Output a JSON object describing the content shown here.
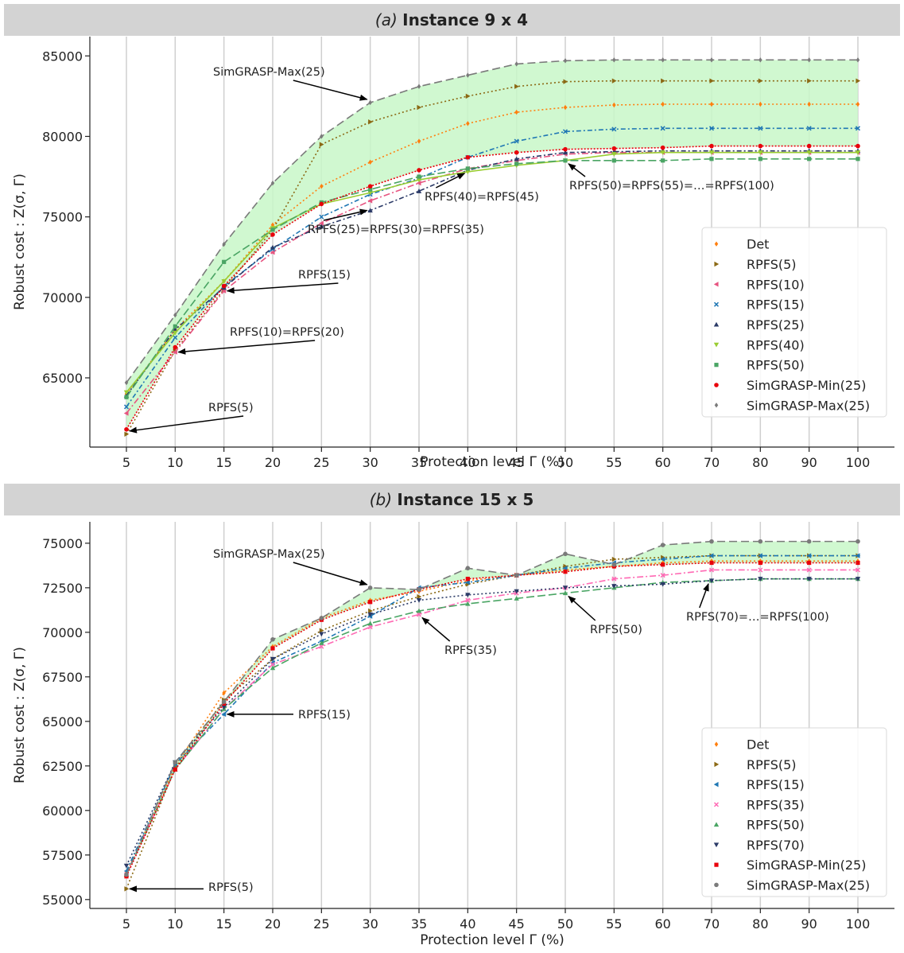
{
  "chart_data": [
    {
      "type": "line",
      "panel_tag": "(a)",
      "title": "Instance 9 x 4",
      "xlabel": "Protection level Γ (%)",
      "ylabel": "Robust cost : Z(σ, Γ)",
      "x_categories": [
        "5",
        "10",
        "15",
        "20",
        "25",
        "30",
        "35",
        "40",
        "45",
        "50",
        "55",
        "60",
        "70",
        "80",
        "90",
        "100"
      ],
      "yticks": [
        65000,
        70000,
        75000,
        80000,
        85000
      ],
      "ylim": [
        60700,
        86200
      ],
      "grid": "vertical",
      "legend_position": "lower-right",
      "band": {
        "lower": "SimGRASP-Min(25)",
        "upper": "SimGRASP-Max(25)",
        "color": "#c8f7c8"
      },
      "series": [
        {
          "name": "Det",
          "color": "#ff7f0e",
          "marker": "diamond",
          "dash": "2,3",
          "values": [
            64000,
            68000,
            71000,
            74500,
            76900,
            78400,
            79700,
            80800,
            81500,
            81800,
            81950,
            82000,
            82000,
            82000,
            82000,
            82000
          ]
        },
        {
          "name": "RPFS(5)",
          "color": "#8b6914",
          "marker": "tri-right",
          "dash": "2,3",
          "values": [
            61500,
            66700,
            70500,
            74200,
            79500,
            80900,
            81800,
            82500,
            83100,
            83400,
            83450,
            83450,
            83450,
            83450,
            83450,
            83450
          ]
        },
        {
          "name": "RPFS(10)",
          "color": "#e75480",
          "marker": "tri-left",
          "dash": "8,3,2,3",
          "values": [
            62800,
            66600,
            70400,
            72800,
            74600,
            76000,
            77100,
            78000,
            78500,
            78900,
            79000,
            79000,
            79000,
            79000,
            79000,
            79000
          ]
        },
        {
          "name": "RPFS(15)",
          "color": "#1f77b4",
          "marker": "x",
          "dash": "6,3,2,3",
          "values": [
            63200,
            67500,
            70700,
            73000,
            75000,
            76400,
            77400,
            78700,
            79700,
            80300,
            80450,
            80500,
            80500,
            80500,
            80500,
            80500
          ]
        },
        {
          "name": "RPFS(25)",
          "color": "#2b3a67",
          "marker": "tri-up",
          "dash": "6,3,2,3",
          "values": [
            63900,
            68000,
            70600,
            73100,
            74400,
            75400,
            76600,
            77900,
            78600,
            79000,
            79050,
            79100,
            79100,
            79100,
            79100,
            79100
          ]
        },
        {
          "name": "RPFS(40)",
          "color": "#9acd32",
          "marker": "tri-down",
          "dash": "0",
          "values": [
            64100,
            67800,
            71000,
            74300,
            75800,
            76500,
            77300,
            77800,
            78200,
            78500,
            78900,
            79000,
            79000,
            79000,
            79000,
            79000
          ]
        },
        {
          "name": "RPFS(50)",
          "color": "#4aa564",
          "marker": "square",
          "dash": "10,4",
          "values": [
            63800,
            68200,
            72200,
            74200,
            75900,
            76700,
            77500,
            78000,
            78300,
            78500,
            78500,
            78500,
            78600,
            78600,
            78600,
            78600
          ]
        },
        {
          "name": "SimGRASP-Min(25)",
          "color": "#e8000b",
          "marker": "circle",
          "dash": "2,2",
          "values": [
            61800,
            66900,
            70700,
            73900,
            75800,
            76900,
            77900,
            78700,
            79000,
            79200,
            79250,
            79300,
            79400,
            79400,
            79400,
            79400
          ]
        },
        {
          "name": "SimGRASP-Max(25)",
          "color": "#7a7a7a",
          "marker": "diamond",
          "dash": "10,5",
          "values": [
            64700,
            68900,
            73300,
            77100,
            80000,
            82100,
            83100,
            83800,
            84500,
            84700,
            84750,
            84750,
            84750,
            84750,
            84750,
            84750
          ]
        }
      ],
      "annotations": [
        {
          "text": "SimGRASP-Max(25)",
          "target_x": "30",
          "target_y": 82100
        },
        {
          "text": "RPFS(40)=RPFS(45)",
          "target_x": "40",
          "target_y": 77900
        },
        {
          "text": "RPFS(50)=RPFS(55)=…=RPFS(100)",
          "target_x": "50",
          "target_y": 78500
        },
        {
          "text": "RPFS(25)=RPFS(30)=RPFS(35)",
          "target_x": "30",
          "target_y": 75600
        },
        {
          "text": "RPFS(15)",
          "target_x": "15",
          "target_y": 70400
        },
        {
          "text": "RPFS(10)=RPFS(20)",
          "target_x": "10",
          "target_y": 66600
        },
        {
          "text": "RPFS(5)",
          "target_x": "5",
          "target_y": 61500
        }
      ]
    },
    {
      "type": "line",
      "panel_tag": "(b)",
      "title": "Instance 15 x 5",
      "xlabel": "Protection level Γ (%)",
      "ylabel": "Robust cost : Z(σ, Γ)",
      "x_categories": [
        "5",
        "10",
        "15",
        "20",
        "25",
        "30",
        "35",
        "40",
        "45",
        "50",
        "55",
        "60",
        "70",
        "80",
        "90",
        "100"
      ],
      "yticks": [
        55000,
        57500,
        60000,
        62500,
        65000,
        67500,
        70000,
        72500,
        75000
      ],
      "ylim": [
        54500,
        76200
      ],
      "grid": "vertical",
      "legend_position": "lower-right",
      "band": {
        "lower": "SimGRASP-Min(25)",
        "upper": "SimGRASP-Max(25)",
        "color": "#c8f7c8"
      },
      "series": [
        {
          "name": "Det",
          "color": "#ff7f0e",
          "marker": "diamond",
          "dash": "2,3",
          "values": [
            56500,
            62500,
            66600,
            69200,
            70800,
            71800,
            72300,
            72900,
            73200,
            73500,
            73700,
            73900,
            74000,
            74000,
            74000,
            74000
          ]
        },
        {
          "name": "RPFS(5)",
          "color": "#8b6914",
          "marker": "tri-right",
          "dash": "2,3",
          "values": [
            55600,
            62400,
            66200,
            68500,
            70100,
            71200,
            72000,
            72700,
            73200,
            73700,
            74100,
            74200,
            74300,
            74300,
            74300,
            74300
          ]
        },
        {
          "name": "RPFS(15)",
          "color": "#1f77b4",
          "marker": "tri-left",
          "dash": "6,3,2,3",
          "values": [
            56600,
            62600,
            65400,
            68300,
            69500,
            70900,
            72500,
            72800,
            73200,
            73600,
            73900,
            74100,
            74300,
            74300,
            74300,
            74300
          ]
        },
        {
          "name": "RPFS(35)",
          "color": "#ff69b4",
          "marker": "x",
          "dash": "8,3,2,3",
          "values": [
            56400,
            62300,
            65700,
            68200,
            69200,
            70300,
            71000,
            71800,
            72200,
            72500,
            73000,
            73200,
            73500,
            73500,
            73500,
            73500
          ]
        },
        {
          "name": "RPFS(50)",
          "color": "#4aa564",
          "marker": "tri-up",
          "dash": "10,4",
          "values": [
            56400,
            62300,
            65700,
            68000,
            69400,
            70500,
            71200,
            71600,
            71900,
            72200,
            72500,
            72800,
            72900,
            73000,
            73000,
            73000
          ]
        },
        {
          "name": "RPFS(70)",
          "color": "#2b3a67",
          "marker": "tri-down",
          "dash": "2,3",
          "values": [
            56900,
            62700,
            65800,
            68500,
            69900,
            71000,
            71800,
            72100,
            72300,
            72500,
            72600,
            72700,
            72900,
            73000,
            73000,
            73000
          ]
        },
        {
          "name": "SimGRASP-Min(25)",
          "color": "#e8000b",
          "marker": "square",
          "dash": "2,2",
          "values": [
            56300,
            62300,
            66000,
            69100,
            70700,
            71700,
            72400,
            73000,
            73200,
            73400,
            73700,
            73800,
            73900,
            73900,
            73900,
            73900
          ]
        },
        {
          "name": "SimGRASP-Max(25)",
          "color": "#7a7a7a",
          "marker": "circle",
          "dash": "10,5",
          "values": [
            56400,
            62700,
            66100,
            69600,
            70800,
            72500,
            72400,
            73600,
            73200,
            74400,
            73800,
            74900,
            75100,
            75100,
            75100,
            75100
          ]
        }
      ],
      "annotations": [
        {
          "text": "SimGRASP-Max(25)",
          "target_x": "30",
          "target_y": 72500
        },
        {
          "text": "RPFS(35)",
          "target_x": "35",
          "target_y": 71000
        },
        {
          "text": "RPFS(50)",
          "target_x": "50",
          "target_y": 72200
        },
        {
          "text": "RPFS(70)=…=RPFS(100)",
          "target_x": "70",
          "target_y": 72900
        },
        {
          "text": "RPFS(15)",
          "target_x": "15",
          "target_y": 65400
        },
        {
          "text": "RPFS(5)",
          "target_x": "5",
          "target_y": 55600
        }
      ]
    }
  ]
}
